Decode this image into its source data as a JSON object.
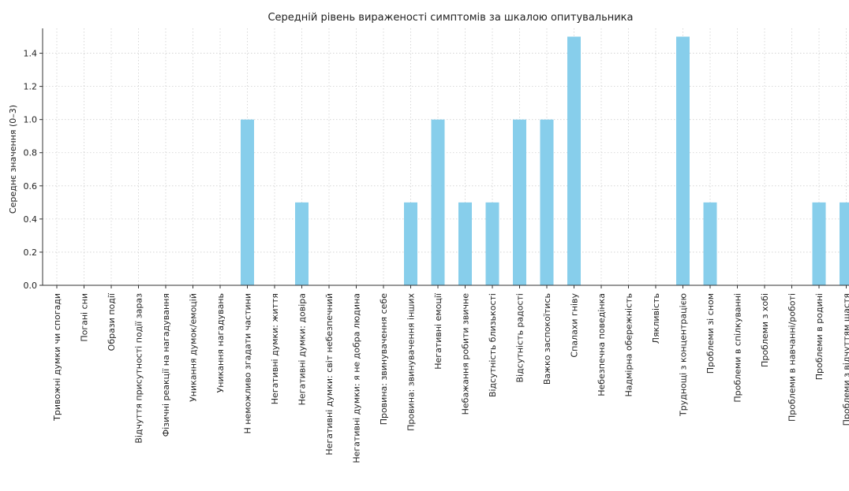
{
  "chart_data": {
    "type": "bar",
    "title": "Середній рівень вираженості симптомів за шкалою опитувальника",
    "xlabel": "",
    "ylabel": "Середнє значення (0–3)",
    "ylim": [
      0,
      1.55
    ],
    "yticks": [
      "0.0",
      "0.2",
      "0.4",
      "0.6",
      "0.8",
      "1.0",
      "1.2",
      "1.4"
    ],
    "grid": true,
    "color": "#87ceeb",
    "categories": [
      "Тривожні думки чи спогади",
      "Погані сни",
      "Образи події",
      "Відчуття присутності події зараз",
      "Фізичні реакції на нагадування",
      "Уникання думок/емоцій",
      "Уникання нагадувань",
      "Н неможливо згадати частини",
      "Негативні думки: життя",
      "Негативні думки: довіра",
      "Негативні думки: світ небезпечний",
      "Негативні думки: я не добра людина",
      "Провина: звинувачення себе",
      "Провина: звинувачення інших",
      "Негативні емоції",
      "Небажання робити звичне",
      "Відсутність близькості",
      "Відсутність радості",
      "Важко заспокоїтись",
      "Спалахи гніву",
      "Небезпечна поведінка",
      "Надмірна обережність",
      "Лякливість",
      "Труднощі з концентрацією",
      "Проблеми зі сном",
      "Проблеми в спілкуванні",
      "Проблеми з хобі",
      "Проблеми в навчанні/роботі",
      "Проблеми в родині",
      "Проблеми з відчуттям щастя"
    ],
    "values": [
      0,
      0,
      0,
      0,
      0,
      0,
      0,
      1.0,
      0,
      0.5,
      0,
      0,
      0,
      0.5,
      1.0,
      0.5,
      0.5,
      1.0,
      1.0,
      1.5,
      0,
      0,
      0,
      1.5,
      0.5,
      0,
      0,
      0,
      0.5,
      0.5
    ]
  }
}
